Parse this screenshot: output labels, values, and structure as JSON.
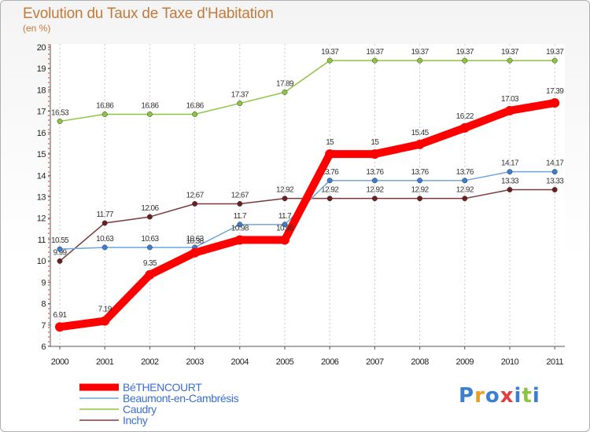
{
  "header": {
    "title": "Evolution du Taux de Taxe d'Habitation",
    "subtitle": "(en %)"
  },
  "logo": {
    "text": "Proxiti",
    "letter_colors": [
      "#3a7fd0",
      "#e8a020",
      "#3a7fd0",
      "#e04040",
      "#3a7fd0",
      "#8cc63f",
      "#3a7fd0"
    ]
  },
  "chart_data": {
    "type": "line",
    "title": "Evolution du Taux de Taxe d'Habitation",
    "ylabel": "(en %)",
    "xlabel": "",
    "x": [
      "2000",
      "2001",
      "2002",
      "2003",
      "2004",
      "2005",
      "2006",
      "2007",
      "2008",
      "2009",
      "2010",
      "2011"
    ],
    "ylim": [
      6,
      20
    ],
    "yticks": [
      6,
      7,
      8,
      9,
      10,
      11,
      12,
      13,
      14,
      15,
      16,
      17,
      18,
      19,
      20
    ],
    "grid": "x-dashed",
    "legend_position": "bottom-left",
    "series": [
      {
        "name": "Caudry",
        "color": "#8cc63f",
        "marker": "#8cc63f",
        "values": [
          16.53,
          16.86,
          16.86,
          16.86,
          17.37,
          17.89,
          19.37,
          19.37,
          19.37,
          19.37,
          19.37,
          19.37
        ],
        "labels": [
          "16.53",
          "16.86",
          "16.86",
          "16.86",
          "17.37",
          "17.89",
          "19.37",
          "19.37",
          "19.37",
          "19.37",
          "19.37",
          "19.37"
        ]
      },
      {
        "name": "Inchy",
        "color": "#7b3a3a",
        "marker": "#6b2020",
        "values": [
          9.99,
          11.77,
          12.06,
          12.67,
          12.67,
          12.92,
          12.92,
          12.92,
          12.92,
          12.92,
          13.33,
          13.33
        ],
        "labels": [
          "9.99",
          "11.77",
          "12.06",
          "12.67",
          "12.67",
          "12.92",
          "12.92",
          "12.92",
          "12.92",
          "12.92",
          "13.33",
          "13.33"
        ]
      },
      {
        "name": "Beaumont-en-Cambrésis",
        "color": "#6fa5d8",
        "marker": "#3a7fd0",
        "values": [
          10.55,
          10.63,
          10.63,
          10.63,
          11.7,
          11.7,
          13.76,
          13.76,
          13.76,
          13.76,
          14.17,
          14.17
        ],
        "labels": [
          "10.55",
          "10.63",
          "10.63",
          "10.63",
          "11.7",
          "11.7",
          "13.76",
          "13.76",
          "13.76",
          "13.76",
          "14.17",
          "14.17"
        ]
      },
      {
        "name": "BéTHENCOURT",
        "color": "#ff0000",
        "marker": "#ff0000",
        "values": [
          6.91,
          7.19,
          9.35,
          10.38,
          10.98,
          10.98,
          15,
          15,
          15.45,
          16.22,
          17.03,
          17.39
        ],
        "labels": [
          "6.91",
          "7.19",
          "9.35",
          "10.38",
          "10.98",
          "10.98",
          "15",
          "15",
          "15.45",
          "16.22",
          "17.03",
          "17.39"
        ]
      }
    ],
    "legend_order": [
      "BéTHENCOURT",
      "Beaumont-en-Cambrésis",
      "Caudry",
      "Inchy"
    ]
  }
}
